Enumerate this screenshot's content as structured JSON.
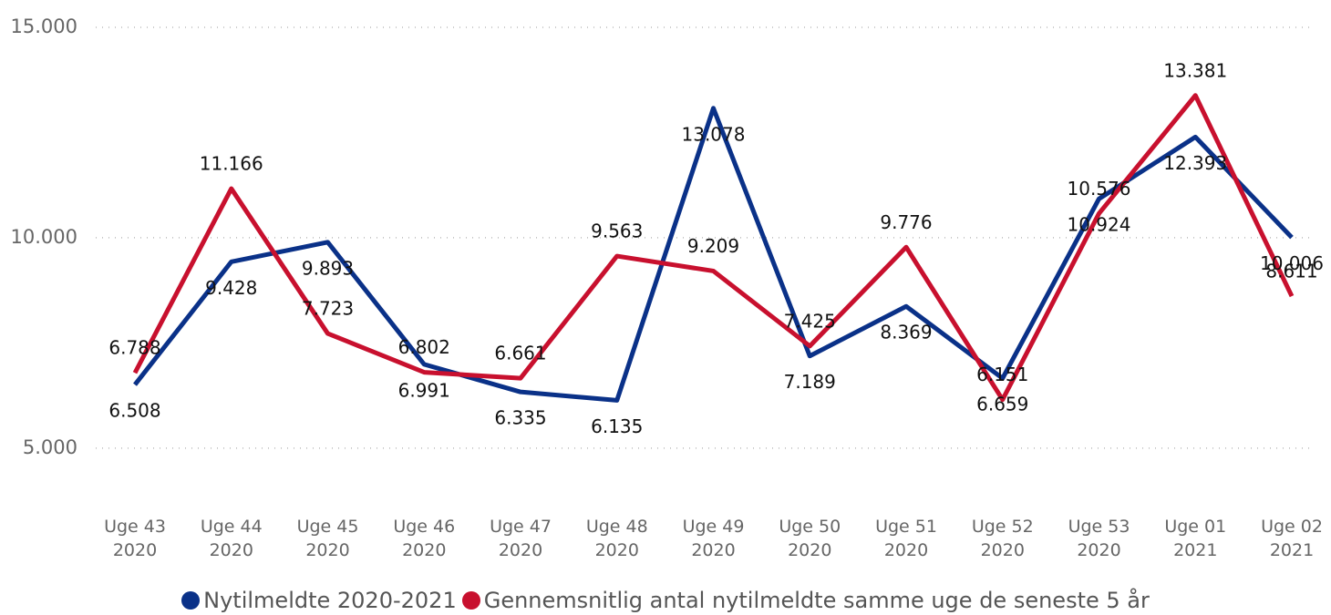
{
  "chart_data": {
    "type": "line",
    "categories": [
      "Uge 43\n2020",
      "Uge 44\n2020",
      "Uge 45\n2020",
      "Uge 46\n2020",
      "Uge 47\n2020",
      "Uge 48\n2020",
      "Uge 49\n2020",
      "Uge 50\n2020",
      "Uge 51\n2020",
      "Uge 52\n2020",
      "Uge 53\n2020",
      "Uge 01\n2021",
      "Uge 02\n2021"
    ],
    "series": [
      {
        "name": "Nytilmeldte 2020-2021",
        "color": "#0a3188",
        "values": [
          6508,
          9428,
          9893,
          6991,
          6335,
          6135,
          13078,
          7189,
          8369,
          6659,
          10924,
          12393,
          10006
        ],
        "value_labels": [
          "6.508",
          "9.428",
          "9.893",
          "6.991",
          "6.335",
          "6.135",
          "13.078",
          "7.189",
          "8.369",
          "6.659",
          "10.924",
          "12.393",
          "10.006"
        ]
      },
      {
        "name": "Gennemsnitlig antal nytilmeldte samme uge de seneste 5 år",
        "color": "#c8102e",
        "values": [
          6788,
          11166,
          7723,
          6802,
          6661,
          9563,
          9209,
          7425,
          9776,
          6151,
          10576,
          13381,
          8611
        ],
        "value_labels": [
          "6.788",
          "11.166",
          "7.723",
          "6.802",
          "6.661",
          "9.563",
          "9.209",
          "7.425",
          "9.776",
          "6.151",
          "10.576",
          "13.381",
          "8.611"
        ]
      }
    ],
    "ylim": [
      4000,
      15000
    ],
    "yticks": [
      {
        "value": 5000,
        "label": "5.000"
      },
      {
        "value": 10000,
        "label": "10.000"
      },
      {
        "value": 15000,
        "label": "15.000"
      }
    ],
    "grid": true,
    "legend": "bottom"
  }
}
